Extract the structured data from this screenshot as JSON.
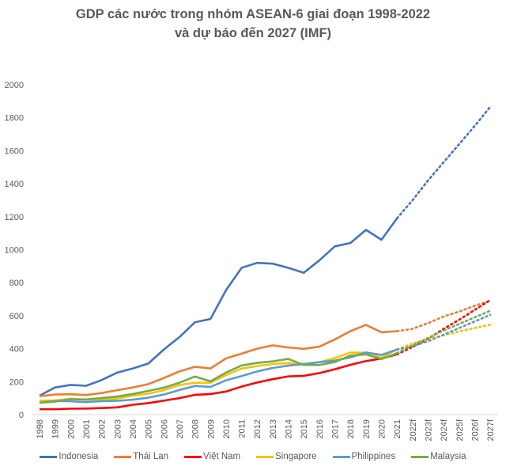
{
  "chart_data": {
    "type": "line",
    "title": "GDP các nước trong nhóm ASEAN-6 giai đoạn 1998-2022",
    "title_line2": "và dự báo đến 2027 (IMF)",
    "xlabel": "",
    "ylabel": "",
    "ylim": [
      0,
      2000
    ],
    "yticks": [
      "0",
      "200",
      "400",
      "600",
      "800",
      "1000",
      "1200",
      "1400",
      "1600",
      "1800",
      "2000"
    ],
    "grid": false,
    "legend": "bottom",
    "categories": [
      "1998",
      "1999",
      "2000",
      "2001",
      "2002",
      "2003",
      "2004",
      "2005",
      "2006",
      "2007",
      "2008",
      "2009",
      "2010",
      "2011",
      "2012",
      "2013",
      "2014",
      "2015",
      "2016",
      "2017",
      "2018",
      "2019",
      "2020",
      "2021",
      "2022f",
      "2023f",
      "2024f",
      "2025f",
      "2026f",
      "2027f"
    ],
    "forecast_start_index": 23,
    "series": [
      {
        "name": "Indonesia",
        "color": "#4472C4",
        "values": [
          115,
          165,
          180,
          175,
          210,
          255,
          280,
          310,
          395,
          470,
          560,
          580,
          755,
          890,
          920,
          915,
          890,
          860,
          935,
          1020,
          1040,
          1120,
          1060,
          1190,
          1300,
          1420,
          1530,
          1640,
          1750,
          1866
        ]
      },
      {
        "name": "Thái Lan",
        "color": "#ED7D31",
        "values": [
          112,
          122,
          124,
          119,
          131,
          148,
          165,
          185,
          222,
          262,
          290,
          280,
          341,
          370,
          400,
          420,
          407,
          399,
          412,
          456,
          506,
          544,
          499,
          506,
          520,
          555,
          595,
          625,
          660,
          690
        ]
      },
      {
        "name": "Việt Nam",
        "color": "#FF0000",
        "values": [
          33,
          33,
          36,
          37,
          40,
          44,
          60,
          70,
          85,
          100,
          120,
          125,
          140,
          170,
          195,
          215,
          232,
          235,
          252,
          275,
          302,
          325,
          340,
          366,
          410,
          460,
          520,
          575,
          635,
          695
        ]
      },
      {
        "name": "Singapore",
        "color": "#FFC000",
        "values": [
          85,
          86,
          96,
          90,
          92,
          98,
          115,
          127,
          148,
          180,
          193,
          194,
          240,
          279,
          295,
          307,
          312,
          308,
          318,
          343,
          376,
          375,
          345,
          397,
          430,
          460,
          480,
          505,
          525,
          545
        ]
      },
      {
        "name": "Philippines",
        "color": "#5B9BD5",
        "values": [
          72,
          83,
          81,
          76,
          82,
          84,
          91,
          103,
          122,
          149,
          174,
          168,
          208,
          234,
          262,
          283,
          297,
          306,
          318,
          328,
          347,
          377,
          362,
          394,
          415,
          445,
          485,
          525,
          565,
          605
        ]
      },
      {
        "name": "Malaysia",
        "color": "#70AD47",
        "values": [
          72,
          79,
          94,
          92,
          101,
          110,
          125,
          144,
          163,
          194,
          231,
          202,
          255,
          298,
          314,
          323,
          338,
          301,
          301,
          319,
          358,
          365,
          337,
          373,
          420,
          465,
          510,
          550,
          590,
          630
        ]
      }
    ]
  }
}
